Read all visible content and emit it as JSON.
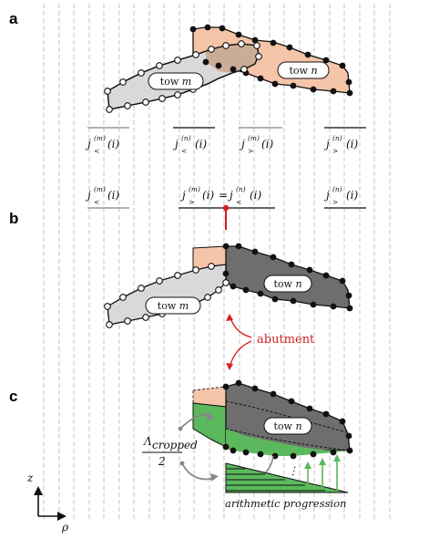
{
  "panels": {
    "a": "a",
    "b": "b",
    "c": "c"
  },
  "tows": {
    "m": "tow m",
    "n": "tow n",
    "m_prefix": "tow ",
    "m_var": "m",
    "n_var": "n"
  },
  "indices": {
    "j_less_m": {
      "base": "j",
      "sup": "(m)",
      "sub": "<",
      "arg": "(i)"
    },
    "j_less_n": {
      "base": "j",
      "sup": "(n)",
      "sub": "<",
      "arg": "(i)"
    },
    "j_greater_m": {
      "base": "j",
      "sup": "(m)",
      "sub": ">",
      "arg": "(i)"
    },
    "j_greater_n": {
      "base": "j",
      "sup": "(n)",
      "sub": ">",
      "arg": "(i)"
    },
    "equals": "="
  },
  "annotations": {
    "abutment": "abutment",
    "arithmetic": "arithmetic progression"
  },
  "fraction": {
    "numerator": "Λ",
    "numerator_sub": "cropped",
    "denominator": "2"
  },
  "axes": {
    "z": "z",
    "rho": "ρ"
  },
  "colors": {
    "tow_n_fill": "#f6c4a8",
    "tow_m_fill": "#d9d9d9",
    "tow_n_dark": "#6e6e6e",
    "overlap": "#c9a68f",
    "green": "#5cb85c",
    "accent_red": "#d42020",
    "gridline": "#b5b5b5"
  }
}
